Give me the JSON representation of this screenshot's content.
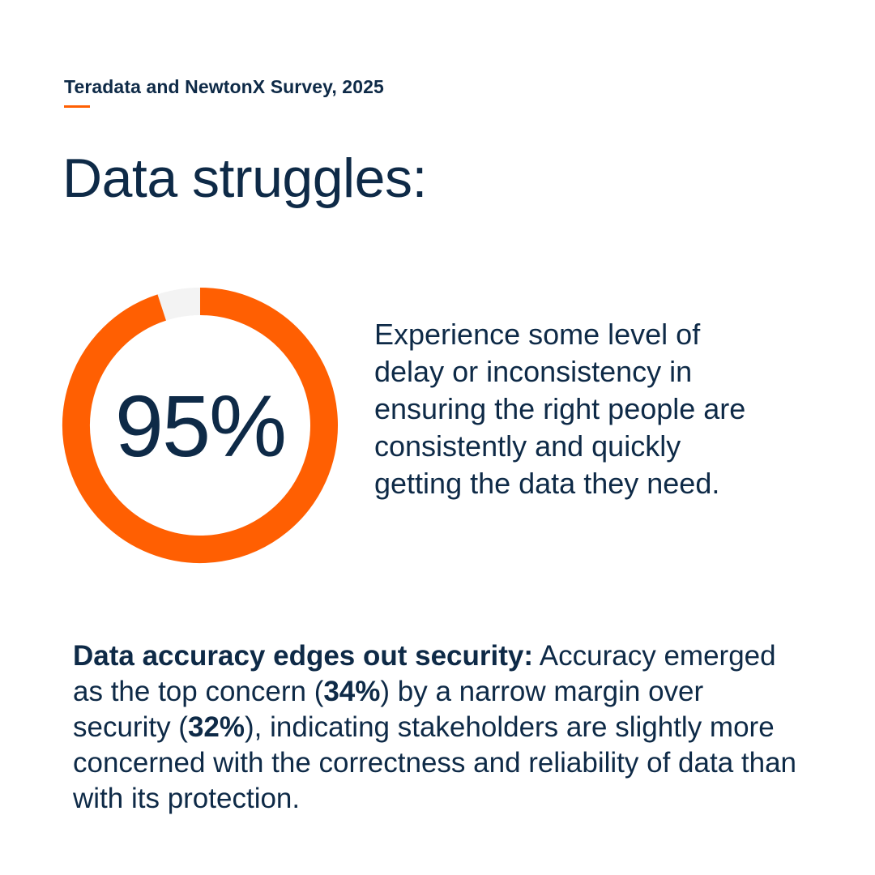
{
  "source": "Teradata and NewtonX Survey, 2025",
  "headline": "Data struggles:",
  "colors": {
    "accent": "#ff5f02",
    "track": "#f3f3f3",
    "text": "#0e2a47"
  },
  "chart_data": {
    "type": "pie",
    "style": "donut",
    "values": [
      95,
      5
    ],
    "value_label": "95%",
    "description": "Experience some level of delay or inconsistency in ensuring the right people are consistently and quickly getting the data they need."
  },
  "insight": {
    "lead": "Data accuracy edges out security:",
    "text_1": " Accuracy emerged as the top concern (",
    "stat_1": "34%",
    "text_2": ") by a narrow margin over security (",
    "stat_2": "32%",
    "text_3": "), indicating stakeholders are slightly more concerned with the correctness and reliability of data than with its protection."
  }
}
